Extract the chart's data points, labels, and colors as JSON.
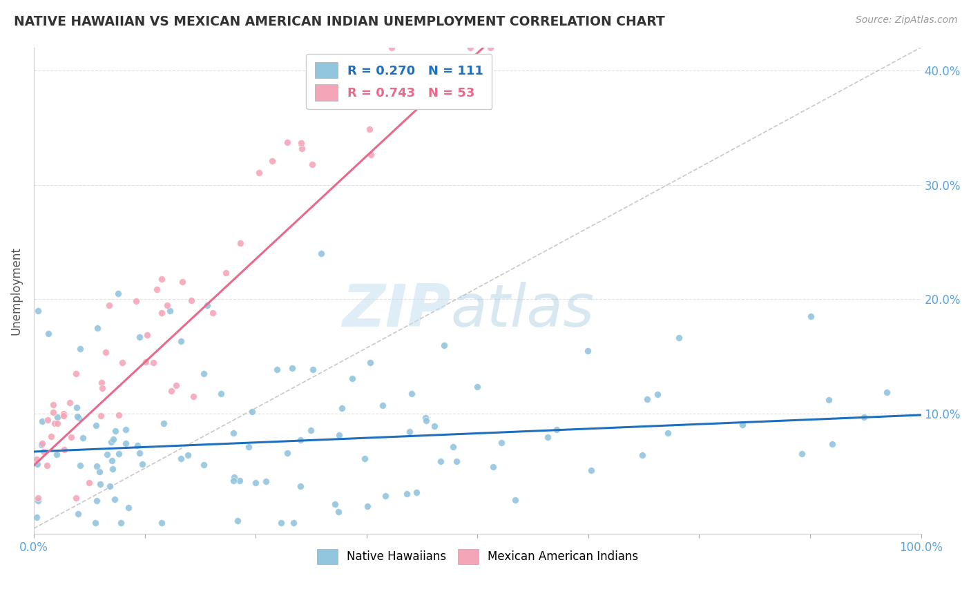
{
  "title": "NATIVE HAWAIIAN VS MEXICAN AMERICAN INDIAN UNEMPLOYMENT CORRELATION CHART",
  "source": "Source: ZipAtlas.com",
  "ylabel": "Unemployment",
  "xlim": [
    0,
    1.0
  ],
  "ylim": [
    -0.005,
    0.42
  ],
  "yticks": [
    0.0,
    0.1,
    0.2,
    0.3,
    0.4
  ],
  "ytick_labels": [
    "",
    "10.0%",
    "20.0%",
    "30.0%",
    "40.0%"
  ],
  "watermark": "ZIPAtlas",
  "legend_blue_r": "R = 0.270",
  "legend_blue_n": "N = 111",
  "legend_pink_r": "R = 0.743",
  "legend_pink_n": "N = 53",
  "blue_color": "#92c5de",
  "pink_color": "#f4a6b8",
  "trend_blue_color": "#1f6fbf",
  "trend_pink_color": "#e8698a",
  "ref_line_color": "#bbbbbb",
  "background_color": "#ffffff",
  "grid_color": "#e0e0e0",
  "title_color": "#333333",
  "source_color": "#999999",
  "tick_color": "#5ba3d9"
}
